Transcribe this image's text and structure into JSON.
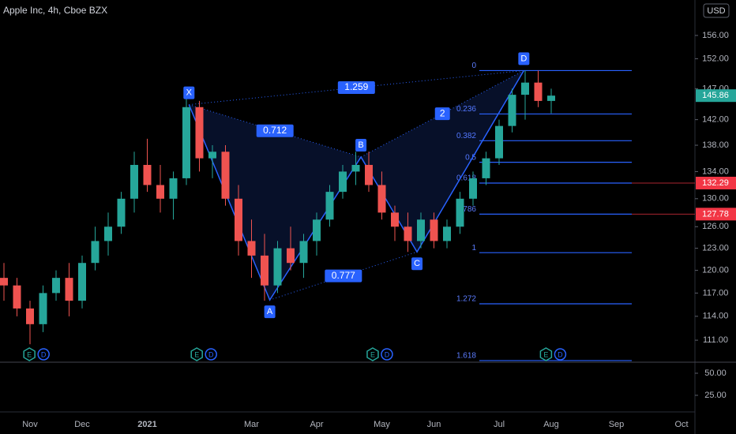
{
  "chart_data": {
    "type": "candlestick",
    "title": "Apple Inc, 4h, Cboe BZX",
    "currency": "USD",
    "log_scale": true,
    "categories": [
      null,
      null,
      "Nov",
      null,
      null,
      null,
      "Dec",
      null,
      null,
      null,
      null,
      "2021",
      null,
      null,
      null,
      null,
      null,
      null,
      null,
      "Mar",
      null,
      null,
      null,
      null,
      "Apr",
      null,
      null,
      null,
      null,
      "May",
      null,
      null,
      null,
      "Jun",
      null,
      null,
      null,
      null,
      "Jul",
      null,
      null,
      null,
      "Aug",
      null,
      null,
      null,
      null,
      "Sep",
      null,
      null,
      null,
      null,
      "Oct"
    ],
    "ohlc": {
      "open": [
        119,
        118,
        115,
        113,
        117,
        119,
        116,
        121,
        124,
        126,
        130,
        135,
        132,
        130,
        133,
        144,
        136,
        137,
        130,
        124,
        122,
        118,
        123,
        121,
        124,
        127,
        131,
        134,
        135,
        132,
        128,
        126,
        124,
        127,
        124,
        126,
        130,
        133,
        136,
        141,
        146,
        148,
        145,
        null,
        null,
        null,
        null,
        null,
        null,
        null,
        null,
        null,
        null
      ],
      "high": [
        121,
        119,
        116,
        118,
        120,
        121,
        122,
        126,
        128,
        131,
        137,
        139,
        135,
        134,
        146,
        145,
        138,
        138,
        132,
        127,
        125,
        124,
        126,
        125,
        128,
        132,
        135,
        137,
        137,
        134,
        129,
        128,
        128,
        128,
        127,
        131,
        134,
        137,
        142,
        147,
        150,
        150,
        147,
        null,
        null,
        null,
        null,
        null,
        null,
        null,
        null,
        null,
        null
      ],
      "low": [
        116,
        114,
        110.5,
        112,
        116,
        114,
        115,
        120,
        122,
        125,
        128,
        131,
        128,
        127,
        132,
        134,
        133,
        129,
        122,
        119,
        116,
        117,
        120,
        119,
        122,
        126,
        130,
        132,
        131,
        127,
        124,
        122.5,
        123,
        123,
        123,
        125,
        129,
        132,
        135,
        140,
        142,
        144,
        143,
        null,
        null,
        null,
        null,
        null,
        null,
        null,
        null,
        null,
        null
      ],
      "close": [
        118,
        115,
        113,
        117,
        119,
        116,
        121,
        124,
        126,
        130,
        135,
        132,
        130,
        133,
        144,
        136,
        137,
        130,
        124,
        122,
        118,
        123,
        121,
        124,
        127,
        131,
        134,
        135,
        132,
        128,
        126,
        124,
        127,
        124,
        126,
        130,
        133,
        136,
        141,
        146,
        148,
        145,
        145.86,
        null,
        null,
        null,
        null,
        null,
        null,
        null,
        null,
        null,
        null
      ]
    },
    "colors": {
      "up": "#26a69a",
      "down": "#ef5350",
      "pattern": "#2962ff",
      "marked": "#f23645"
    },
    "ylim": [
      108.4,
      162.3
    ],
    "yticks": [
      {
        "value": 156,
        "label": "156.00"
      },
      {
        "value": 152,
        "label": "152.00"
      },
      {
        "value": 147,
        "label": "147.00"
      },
      {
        "value": 142,
        "label": "142.00"
      },
      {
        "value": 138,
        "label": "138.00"
      },
      {
        "value": 134,
        "label": "134.00"
      },
      {
        "value": 130,
        "label": "130.00"
      },
      {
        "value": 126,
        "label": "126.00"
      },
      {
        "value": 123,
        "label": "123.00"
      },
      {
        "value": 120,
        "label": "120.00"
      },
      {
        "value": 117,
        "label": "117.00"
      },
      {
        "value": 114,
        "label": "114.00"
      },
      {
        "value": 111,
        "label": "111.00"
      }
    ],
    "last_price": 145.86,
    "marked_prices": [
      132.29,
      127.78
    ],
    "pattern": {
      "points": [
        {
          "label": "X",
          "x": 14.2,
          "value": 144.4
        },
        {
          "label": "A",
          "x": 20.4,
          "value": 116.1
        },
        {
          "label": "B",
          "x": 27.4,
          "value": 136.2
        },
        {
          "label": "C",
          "x": 31.7,
          "value": 122.5
        },
        {
          "label": "D",
          "x": 39.9,
          "value": 150
        }
      ],
      "ratios": [
        1.259,
        0.712,
        0.777,
        2
      ]
    },
    "fib_levels": [
      {
        "ratio": 0,
        "price": 150
      },
      {
        "ratio": 0.236,
        "price": 142.9
      },
      {
        "ratio": 0.382,
        "price": 138.7
      },
      {
        "ratio": 0.5,
        "price": 135.4
      },
      {
        "ratio": 0.618,
        "price": 132.29
      },
      {
        "ratio": 0.786,
        "price": 127.78
      },
      {
        "ratio": 1,
        "price": 122.4
      },
      {
        "ratio": 1.272,
        "price": 115.6
      },
      {
        "ratio": 1.618,
        "price": 108.5
      }
    ],
    "events": [
      {
        "x": 1.95,
        "labels": [
          "E",
          "D"
        ]
      },
      {
        "x": 14.8,
        "labels": [
          "E",
          "D"
        ]
      },
      {
        "x": 28.3,
        "labels": [
          "E",
          "D"
        ]
      },
      {
        "x": 41.6,
        "labels": [
          "E",
          "D"
        ]
      }
    ],
    "lower_ylim": [
      8,
      61.6
    ],
    "lower_yticks": [
      {
        "value": 50,
        "label": "50.00"
      },
      {
        "value": 25,
        "label": "25.00"
      }
    ]
  }
}
